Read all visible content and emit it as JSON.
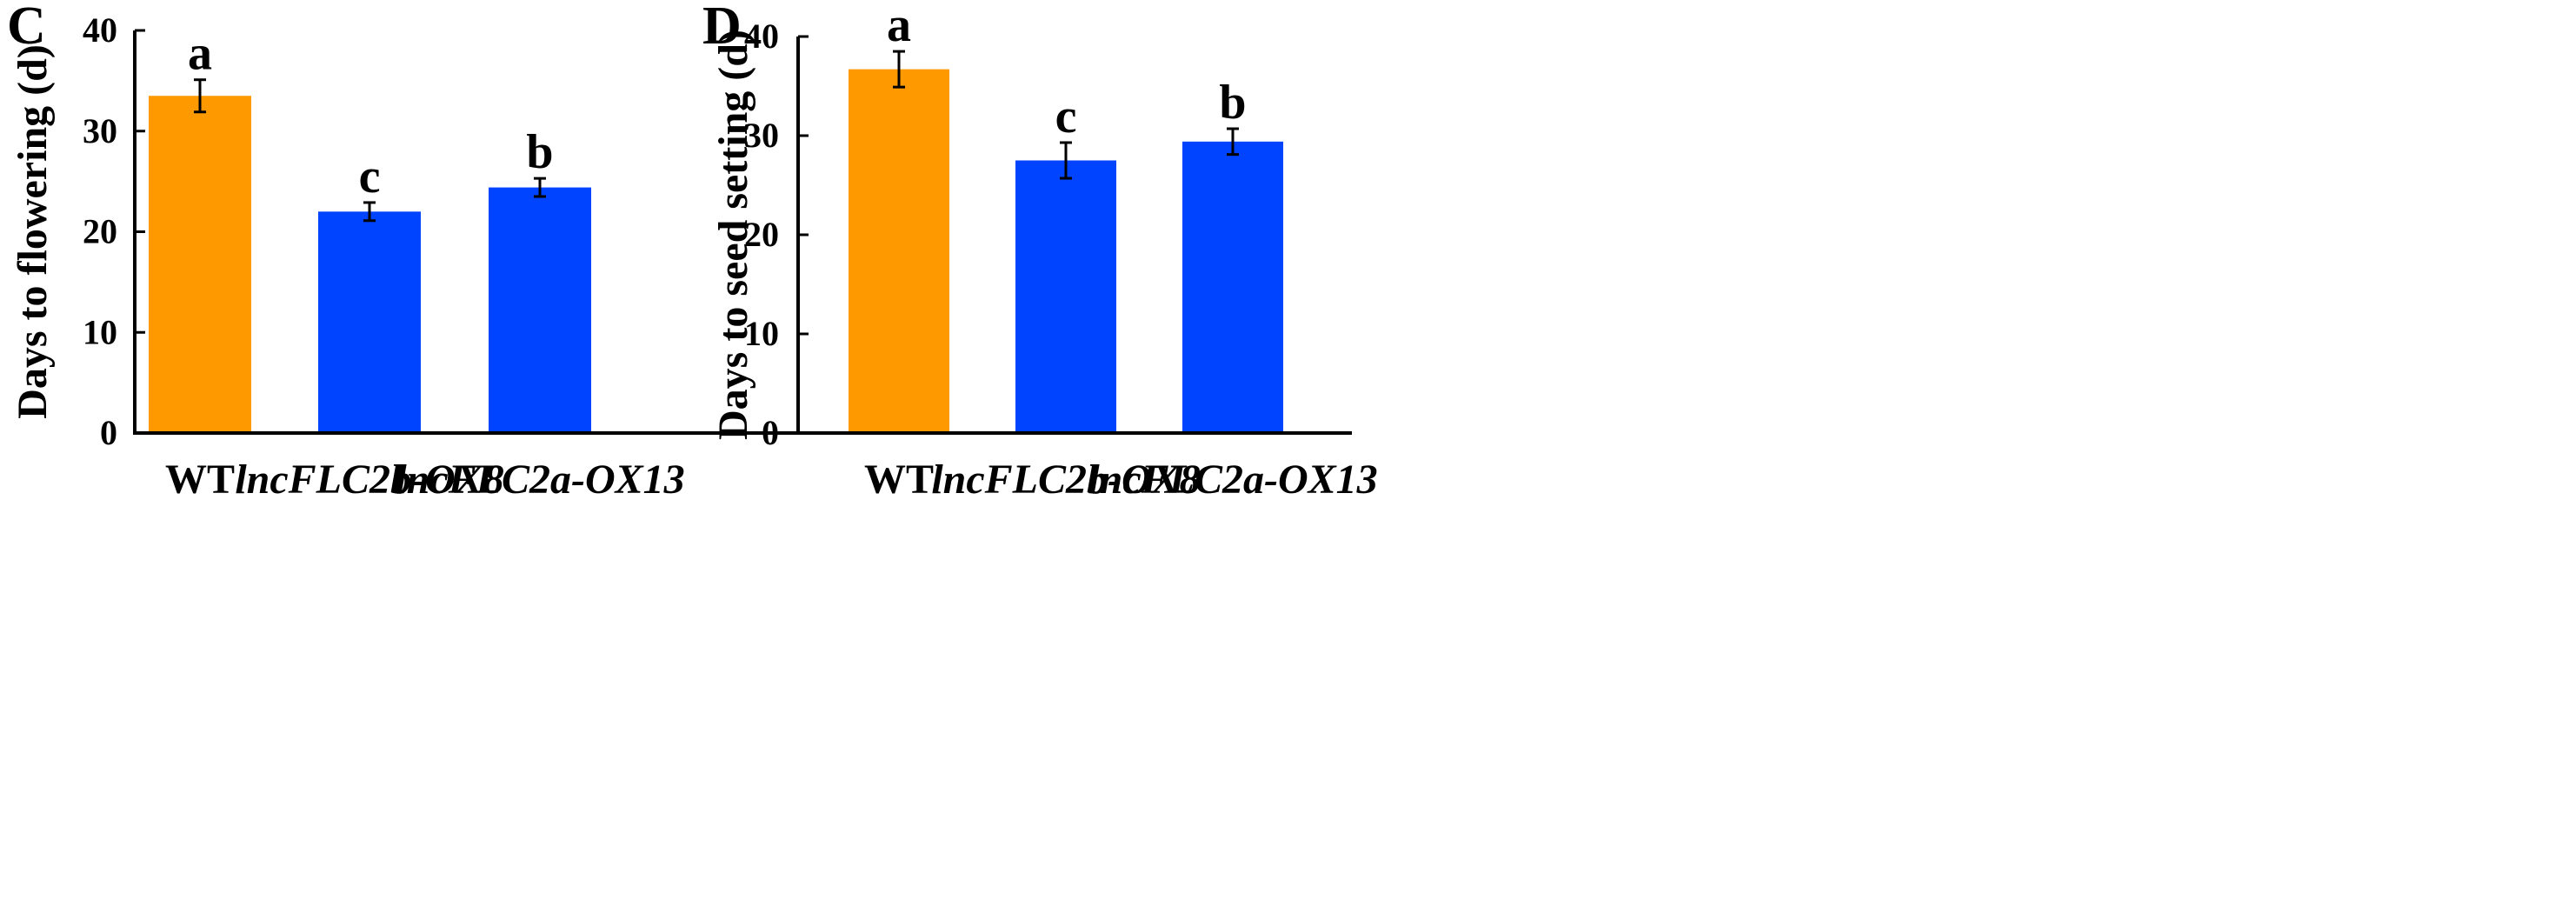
{
  "chart_data": [
    {
      "type": "bar",
      "panel_label": "C",
      "categories": [
        "WT",
        "lncFLC2b-OX8",
        "lncFLC2a-OX13"
      ],
      "category_italic": [
        false,
        true,
        true
      ],
      "values": [
        33.5,
        22.0,
        24.4
      ],
      "errors": [
        1.6,
        0.9,
        0.9
      ],
      "significance": [
        "a",
        "c",
        "b"
      ],
      "colors": [
        "#FF9900",
        "#0044FF",
        "#0044FF"
      ],
      "ylabel": "Days to flowering (d)",
      "ylim": [
        0,
        40
      ],
      "yticks": [
        0,
        10,
        20,
        30,
        40
      ],
      "grid": false
    },
    {
      "type": "bar",
      "panel_label": "D",
      "categories": [
        "WT",
        "lncFLC2b-OX8",
        "lncFLC2a-OX13"
      ],
      "category_italic": [
        false,
        true,
        true
      ],
      "values": [
        36.7,
        27.5,
        29.4
      ],
      "errors": [
        1.8,
        1.8,
        1.3
      ],
      "significance": [
        "a",
        "c",
        "b"
      ],
      "colors": [
        "#FF9900",
        "#0044FF",
        "#0044FF"
      ],
      "ylabel": "Days to seed setting (d)",
      "ylim": [
        0,
        40
      ],
      "yticks": [
        0,
        10,
        20,
        30,
        40
      ],
      "grid": false
    }
  ]
}
